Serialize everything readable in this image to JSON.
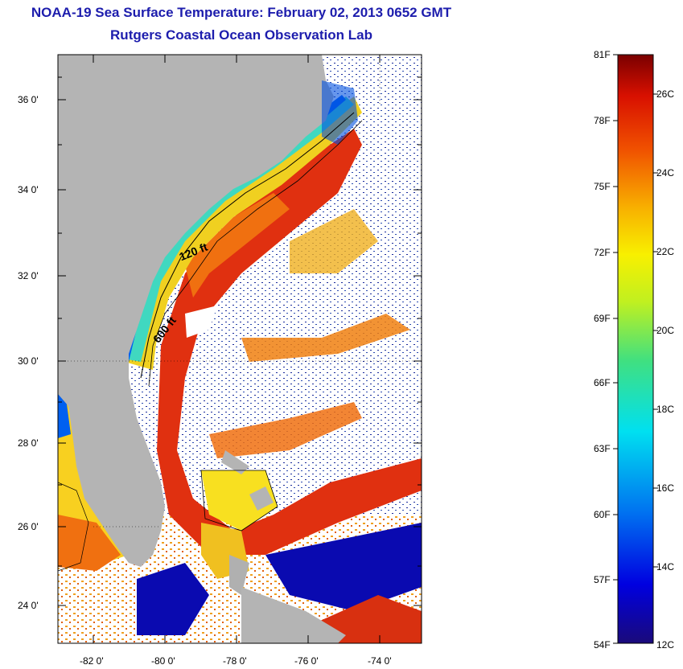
{
  "title": "NOAA-19 Sea Surface Temperature:  February 02, 2013 0652 GMT",
  "subtitle": "Rutgers Coastal Ocean Observation Lab",
  "latitude_labels": [
    "36 0'",
    "34 0'",
    "32 0'",
    "30 0'",
    "28 0'",
    "26 0'",
    "24 0'"
  ],
  "longitude_labels": [
    "-82 0'",
    "-80 0'",
    "-78 0'",
    "-76 0'",
    "-74 0'"
  ],
  "contour_labels": [
    "120 ft",
    "600 ft"
  ],
  "colorbar": {
    "fahrenheit": [
      "81F",
      "78F",
      "75F",
      "72F",
      "69F",
      "66F",
      "63F",
      "60F",
      "57F",
      "54F"
    ],
    "celsius": [
      "26C",
      "24C",
      "22C",
      "20C",
      "18C",
      "16C",
      "14C",
      "12C"
    ]
  },
  "colors": {
    "title": "#1d1dad",
    "land": "#b4b4b4",
    "cloud": "#ffffff",
    "cold": "#0a0a9a",
    "warm": "#d42a10"
  }
}
